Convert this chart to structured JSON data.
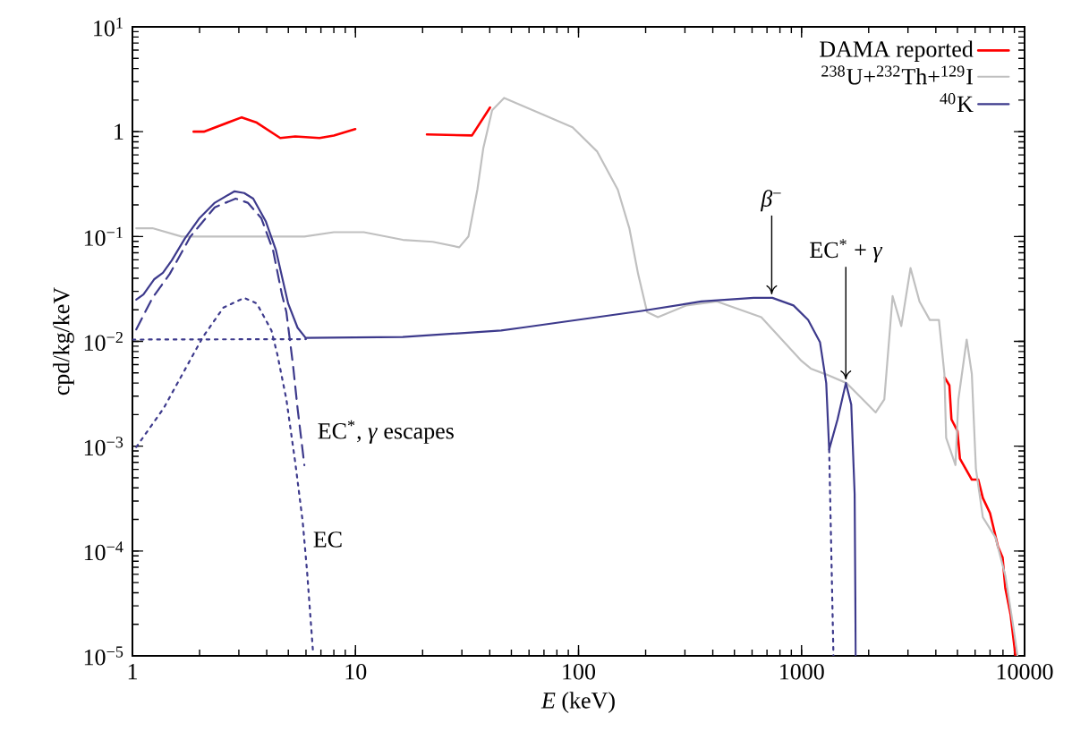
{
  "chart_data": {
    "type": "line",
    "log": "xy",
    "legend": "top right",
    "marker": "none",
    "xlabel": "*E* (keV)",
    "ylabel": "cpd/kg/keV",
    "xlim": [
      1,
      10000
    ],
    "ylim": [
      1e-05,
      10
    ],
    "xticks": [
      1,
      10,
      100,
      1000,
      10000
    ],
    "yticks": [
      {
        "value": 1e-05,
        "label": "10$^{−5}$"
      },
      {
        "value": 0.0001,
        "label": "10$^{−4}$"
      },
      {
        "value": 0.001,
        "label": "10$^{−3}$"
      },
      {
        "value": 0.01,
        "label": "10$^{−2}$"
      },
      {
        "value": 0.1,
        "label": "10$^{−1}$"
      },
      {
        "value": 1,
        "label": "1"
      },
      {
        "value": 10,
        "label": "10$^{1}$"
      }
    ],
    "series": [
      {
        "name": "DAMA reported",
        "color": "#ff0000",
        "line_style": "solid",
        "x": [
          1.88,
          2.09,
          3.09,
          3.61,
          4.6,
          5.37,
          6.9,
          8.0,
          9.98,
          15,
          20.9,
          33.3,
          40.1,
          100,
          4390,
          4600,
          4700,
          5000,
          5130,
          5800,
          6200,
          6500,
          7000,
          7600,
          7970,
          8200,
          8650,
          8900,
          9100
        ],
        "values": [
          1.0,
          1.0,
          1.37,
          1.22,
          0.87,
          0.9,
          0.87,
          0.92,
          1.06,
          null,
          0.94,
          0.92,
          1.7,
          null,
          0.0045,
          0.0038,
          0.0018,
          0.0014,
          0.00076,
          0.00048,
          0.00048,
          0.00032,
          0.00023,
          0.00011,
          8.7e-05,
          4.4e-05,
          2.5e-05,
          1.5e-05,
          1e-05
        ]
      },
      {
        "name": "$^{238}$U+$^{232}$Th+$^{129}$I",
        "color": "#c0c0c0",
        "line_style": "solid",
        "x": [
          1.04,
          1.23,
          1.66,
          2.56,
          4.35,
          5.9,
          8.0,
          10.9,
          16.3,
          22.2,
          29.2,
          32.1,
          35.2,
          37.4,
          41,
          46.4,
          67,
          94,
          121,
          150,
          169,
          185,
          203,
          227,
          304,
          418,
          660,
          1000,
          1100,
          1300,
          1590,
          1820,
          2150,
          2350,
          2560,
          2800,
          3080,
          3380,
          3760,
          4130,
          4370,
          4450,
          4900,
          5050,
          5500,
          5800,
          6050,
          6500,
          7400,
          8200,
          8900,
          9300
        ],
        "values": [
          0.12,
          0.12,
          0.1,
          0.1,
          0.1,
          0.1,
          0.11,
          0.11,
          0.093,
          0.089,
          0.079,
          0.1,
          0.28,
          0.69,
          1.6,
          2.1,
          1.5,
          1.1,
          0.65,
          0.28,
          0.12,
          0.044,
          0.019,
          0.017,
          0.022,
          0.024,
          0.017,
          0.0065,
          0.0055,
          0.0048,
          0.004,
          0.003,
          0.0021,
          0.0028,
          0.027,
          0.014,
          0.05,
          0.024,
          0.016,
          0.016,
          0.0049,
          0.0012,
          0.00066,
          0.0028,
          0.0104,
          0.0049,
          0.00061,
          0.00021,
          0.000135,
          5.8e-05,
          1.9e-05,
          1e-05
        ]
      },
      {
        "name": "$^{40}$K",
        "color": "#3d3a8c",
        "line_style": "solid",
        "x": [
          1.04,
          1.12,
          1.25,
          1.37,
          1.5,
          1.72,
          2.0,
          2.34,
          2.87,
          3.17,
          3.48,
          3.96,
          4.4,
          4.99,
          5.5,
          5.98,
          16.3,
          45,
          55.6,
          192,
          355,
          610,
          740,
          920,
          1070,
          1210,
          1290,
          1330,
          1450,
          1580,
          1670,
          1730,
          1750
        ],
        "values": [
          0.025,
          0.028,
          0.039,
          0.045,
          0.059,
          0.096,
          0.15,
          0.21,
          0.27,
          0.26,
          0.23,
          0.14,
          0.074,
          0.023,
          0.0135,
          0.0108,
          0.011,
          0.0127,
          0.0135,
          0.0195,
          0.024,
          0.026,
          0.026,
          0.022,
          0.016,
          0.0098,
          0.004,
          0.00093,
          0.0018,
          0.004,
          0.0025,
          0.00035,
          1e-05
        ]
      },
      {
        "color": "#3d3a8c",
        "line_style": "dashed",
        "x": [
          1.04,
          1.23,
          1.47,
          1.82,
          2.34,
          2.9,
          3.29,
          3.78,
          4.27,
          4.68,
          4.9,
          5.24,
          5.5,
          5.9
        ],
        "values": [
          0.013,
          0.026,
          0.044,
          0.1,
          0.19,
          0.23,
          0.21,
          0.15,
          0.074,
          0.028,
          0.019,
          0.0061,
          0.0023,
          0.00066
        ]
      },
      {
        "color": "#3d3a8c",
        "line_style": "dotted",
        "x": [
          1.04,
          1.38,
          2.07,
          2.56,
          3.17,
          3.61,
          4.2,
          4.47,
          4.9,
          5.37,
          5.8,
          6.07,
          6.45
        ],
        "values": [
          0.00098,
          0.0023,
          0.011,
          0.021,
          0.026,
          0.023,
          0.0127,
          0.0074,
          0.0028,
          0.0007,
          0.00019,
          6.3e-05,
          1.1e-05
        ]
      },
      {
        "color": "#3d3a8c",
        "line_style": "dotted",
        "x": [
          1,
          6,
          100,
          1330,
          1390
        ],
        "values": [
          0.0104,
          0.0105,
          null,
          0.00093,
          1e-05
        ]
      }
    ],
    "annotations": [
      {
        "text": "*β*$^{−}$",
        "x": 735,
        "y": 0.026
      },
      {
        "text": "EC$^{*}$ + *γ*",
        "x": 1580,
        "y": 0.004
      },
      "EC$^{*}$, *γ* escapes",
      "EC"
    ]
  }
}
